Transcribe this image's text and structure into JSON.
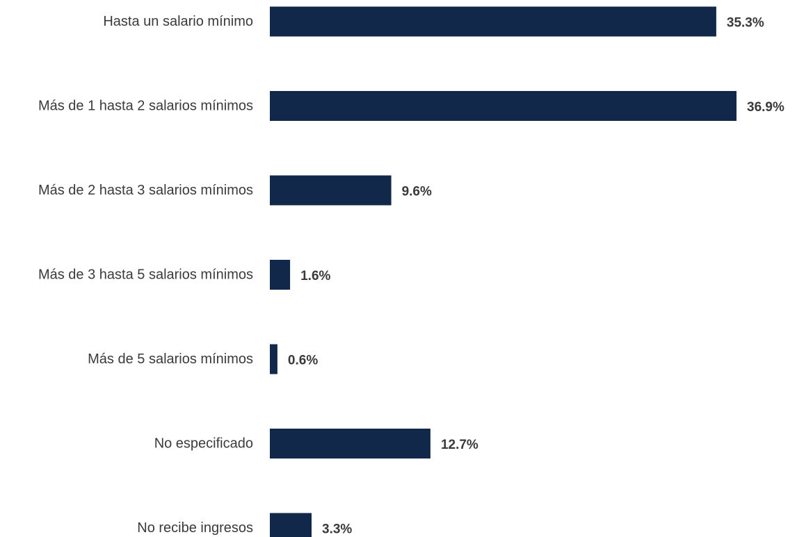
{
  "chart_data": {
    "type": "bar",
    "orientation": "horizontal",
    "categories": [
      "Hasta un salario mínimo",
      "Más de 1 hasta 2 salarios mínimos",
      "Más de 2 hasta 3 salarios mínimos",
      "Más de 3 hasta 5 salarios mínimos",
      "Más de 5 salarios mínimos",
      "No especificado",
      "No recibe ingresos"
    ],
    "values": [
      35.3,
      36.9,
      9.6,
      1.6,
      0.6,
      12.7,
      3.3
    ],
    "value_labels": [
      "35.3%",
      "36.9%",
      "9.6%",
      "1.6%",
      "0.6%",
      "12.7%",
      "3.3%"
    ],
    "title": "",
    "xlabel": "",
    "ylabel": "",
    "xlim": [
      0,
      36.9
    ],
    "grid": false,
    "legend": "none",
    "bar_color": "#11284a",
    "label_color": "#3a3a3a"
  }
}
